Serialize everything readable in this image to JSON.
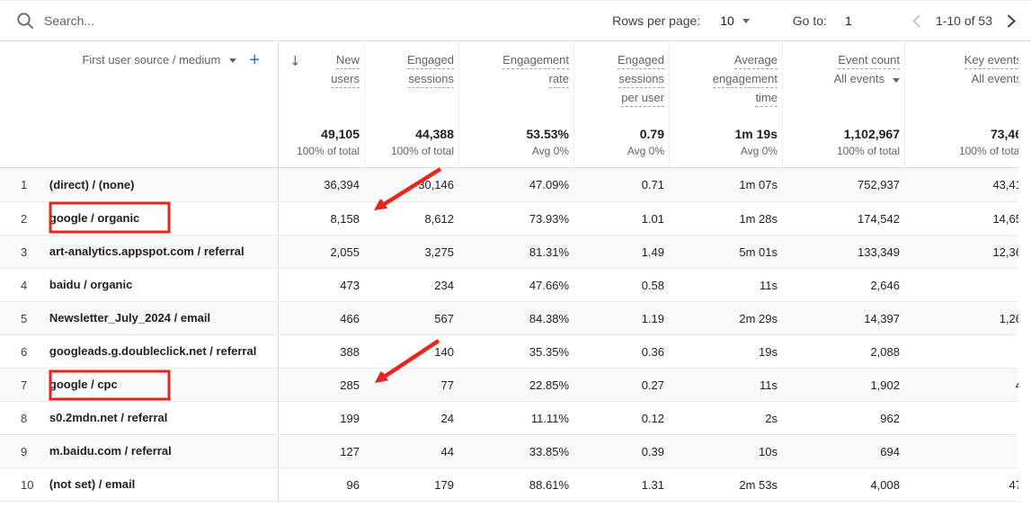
{
  "colors": {
    "accent_blue": "#1a73e8",
    "annotation_red": "#e8261d"
  },
  "toolbar": {
    "search_placeholder": "Search...",
    "rows_per_page_label": "Rows per page:",
    "rows_per_page_value": "10",
    "goto_label": "Go to:",
    "goto_value": "1",
    "range_text": "1-10 of 53"
  },
  "table": {
    "dimension_header": "First user source / medium",
    "metrics": [
      {
        "id": "new-users",
        "lines": [
          "New",
          "users"
        ],
        "sorted": true
      },
      {
        "id": "engaged-sessions",
        "lines": [
          "Engaged",
          "sessions"
        ]
      },
      {
        "id": "engagement-rate",
        "lines": [
          "Engagement",
          "rate"
        ]
      },
      {
        "id": "engaged-sessions-per-user",
        "lines": [
          "Engaged",
          "sessions",
          "per user"
        ]
      },
      {
        "id": "average-engagement-time",
        "lines": [
          "Average",
          "engagement",
          "time"
        ]
      },
      {
        "id": "event-count",
        "lines": [
          "Event count"
        ],
        "sub": "All events",
        "sub_caret": true
      },
      {
        "id": "key-events",
        "lines": [
          "Key events"
        ],
        "sub": "All events"
      }
    ],
    "totals": {
      "values": [
        "49,105",
        "44,388",
        "53.53%",
        "0.79",
        "1m 19s",
        "1,102,967",
        "73,46"
      ],
      "subs": [
        "100% of total",
        "100% of total",
        "Avg 0%",
        "Avg 0%",
        "Avg 0%",
        "100% of total",
        "100% of total"
      ]
    },
    "rows": [
      {
        "num": "1",
        "name": "(direct) / (none)",
        "values": [
          "36,394",
          "30,146",
          "47.09%",
          "0.71",
          "1m 07s",
          "752,937",
          "43,41"
        ]
      },
      {
        "num": "2",
        "name": "google / organic",
        "values": [
          "8,158",
          "8,612",
          "73.93%",
          "1.01",
          "1m 28s",
          "174,542",
          "14,65"
        ]
      },
      {
        "num": "3",
        "name": "art-analytics.appspot.com / referral",
        "values": [
          "2,055",
          "3,275",
          "81.31%",
          "1.49",
          "5m 01s",
          "133,349",
          "12,36"
        ]
      },
      {
        "num": "4",
        "name": "baidu / organic",
        "values": [
          "473",
          "234",
          "47.66%",
          "0.58",
          "11s",
          "2,646",
          ""
        ]
      },
      {
        "num": "5",
        "name": "Newsletter_July_2024 / email",
        "values": [
          "466",
          "567",
          "84.38%",
          "1.19",
          "2m 29s",
          "14,397",
          "1,26"
        ]
      },
      {
        "num": "6",
        "name": "googleads.g.doubleclick.net / referral",
        "values": [
          "388",
          "140",
          "35.35%",
          "0.36",
          "19s",
          "2,088",
          ""
        ]
      },
      {
        "num": "7",
        "name": "google / cpc",
        "values": [
          "285",
          "77",
          "22.85%",
          "0.27",
          "11s",
          "1,902",
          "4"
        ]
      },
      {
        "num": "8",
        "name": "s0.2mdn.net / referral",
        "values": [
          "199",
          "24",
          "11.11%",
          "0.12",
          "2s",
          "962",
          ""
        ]
      },
      {
        "num": "9",
        "name": "m.baidu.com / referral",
        "values": [
          "127",
          "44",
          "33.85%",
          "0.39",
          "10s",
          "694",
          ""
        ]
      },
      {
        "num": "10",
        "name": "(not set) / email",
        "values": [
          "96",
          "179",
          "88.61%",
          "1.31",
          "2m 53s",
          "4,008",
          "47"
        ]
      }
    ]
  },
  "annotations": {
    "boxes": [
      {
        "highlighted_text": "google / organic",
        "row": "2"
      },
      {
        "highlighted_text": "google / cpc",
        "row": "7"
      }
    ],
    "arrows": [
      {
        "points_to": "8,158 new users of google / organic"
      },
      {
        "points_to": "285 new users of google / cpc"
      }
    ]
  }
}
